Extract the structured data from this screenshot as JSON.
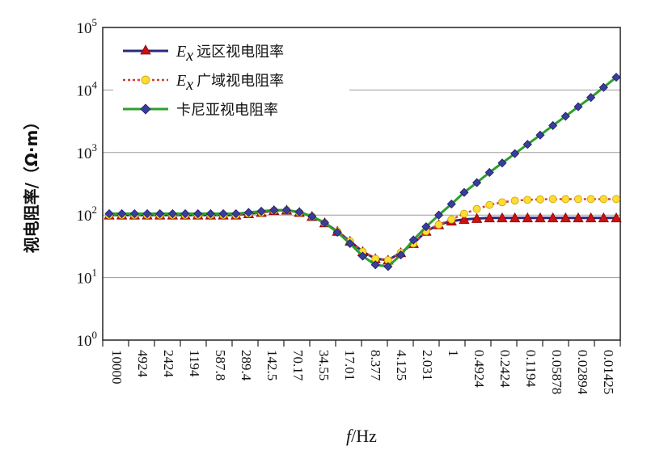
{
  "chart_data": {
    "type": "line",
    "ylabel": "视电阻率/（Ω·m）",
    "xlabel": "f/Hz",
    "y_scale": "log",
    "ylim": [
      1,
      100000
    ],
    "y_ticks": [
      {
        "base": "10",
        "exp": "0"
      },
      {
        "base": "10",
        "exp": "1"
      },
      {
        "base": "10",
        "exp": "2"
      },
      {
        "base": "10",
        "exp": "3"
      },
      {
        "base": "10",
        "exp": "4"
      },
      {
        "base": "10",
        "exp": "5"
      }
    ],
    "x_ticks": [
      "10000",
      "4924",
      "2424",
      "1194",
      "587.8",
      "289.4",
      "142.5",
      "70.17",
      "34.55",
      "17.01",
      "8.377",
      "4.125",
      "2.031",
      "1",
      "0.4924",
      "0.2424",
      "0.1194",
      "0.05878",
      "0.02894",
      "0.01425"
    ],
    "grid": "horizontal",
    "legend_position": "top-left",
    "series": [
      {
        "name_prefix": "E",
        "name_sub": "x",
        "name": "远区视电阻率",
        "color": "#c00000",
        "line_color": "#2a2a7a",
        "marker": "triangle",
        "values": [
          100,
          100,
          100,
          100,
          100,
          100,
          100,
          100,
          100,
          100,
          100,
          105,
          110,
          118,
          120,
          110,
          95,
          75,
          55,
          38,
          26,
          20,
          19,
          25,
          35,
          55,
          70,
          80,
          85,
          88,
          90,
          90,
          90,
          90,
          90,
          90,
          90,
          90,
          90,
          90,
          90
        ]
      },
      {
        "name_prefix": "E",
        "name_sub": "x",
        "name": "广域视电阻率",
        "color": "#ffdd33",
        "line_color": "#d43a3a",
        "marker": "circle",
        "values": [
          100,
          100,
          100,
          100,
          100,
          100,
          100,
          100,
          100,
          100,
          100,
          105,
          110,
          118,
          120,
          110,
          95,
          75,
          55,
          38,
          26,
          20,
          19,
          25,
          35,
          55,
          70,
          85,
          105,
          125,
          145,
          160,
          170,
          175,
          178,
          180,
          180,
          180,
          180,
          180,
          180
        ]
      },
      {
        "name": "卡尼亚视电阻率",
        "color": "#3c3c9c",
        "line_color": "#2ca02c",
        "marker": "diamond",
        "values": [
          105,
          105,
          105,
          105,
          105,
          105,
          105,
          105,
          105,
          105,
          105,
          110,
          115,
          120,
          120,
          112,
          95,
          75,
          53,
          35,
          22,
          16,
          15,
          23,
          40,
          65,
          100,
          150,
          230,
          330,
          480,
          680,
          960,
          1350,
          1900,
          2700,
          3800,
          5400,
          7600,
          11000,
          16000
        ]
      }
    ]
  }
}
